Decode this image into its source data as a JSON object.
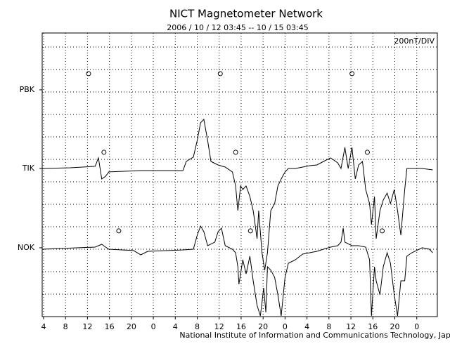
{
  "chart_data": {
    "type": "line",
    "title": "NICT Magnetometer Network",
    "subtitle": "2006 / 10 / 12   03:45 -- 10 / 15   03:45",
    "scale_label": "200nT/DIV",
    "color": "#000000",
    "grid": true,
    "xlim": [
      3.75,
      75.75
    ],
    "xticks": [
      4,
      8,
      12,
      16,
      20,
      {
        "value": 24,
        "label": "0"
      },
      {
        "value": 28,
        "label": "4"
      },
      {
        "value": 32,
        "label": "8"
      },
      {
        "value": 36,
        "label": "12"
      },
      {
        "value": 40,
        "label": "16"
      },
      {
        "value": 44,
        "label": "20"
      },
      {
        "value": 48,
        "label": "0"
      },
      {
        "value": 52,
        "label": "4"
      },
      {
        "value": 56,
        "label": "8"
      },
      {
        "value": 60,
        "label": "12"
      },
      {
        "value": 64,
        "label": "16"
      },
      {
        "value": 68,
        "label": "20"
      },
      {
        "value": 72,
        "label": "0"
      }
    ],
    "ylim": [
      0,
      2525
    ],
    "ygrid": [
      200,
      400,
      600,
      800,
      1000,
      1200,
      1400,
      1600,
      1800,
      2000,
      2200,
      2400
    ],
    "stations": [
      {
        "label": "PBK",
        "baseline": 2019,
        "marker_x": [
          12.2,
          36.2,
          60.2
        ],
        "marker_y": 2163
      },
      {
        "label": "TIK",
        "baseline": 1319,
        "marker_x": [
          15,
          39,
          63
        ],
        "marker_y": 1463,
        "x": [
          3.75,
          8.9,
          13.4,
          14.0,
          14.6,
          15.3,
          15.9,
          21.7,
          29.4,
          30.0,
          31.3,
          32.0,
          32.6,
          33.2,
          33.9,
          34.5,
          35.8,
          37.1,
          38.4,
          39.0,
          39.4,
          39.9,
          40.3,
          40.9,
          41.6,
          42.2,
          42.9,
          43.2,
          43.8,
          44.3,
          44.8,
          45.4,
          46.1,
          46.7,
          47.3,
          48.0,
          48.6,
          49.9,
          51.2,
          52.5,
          53.8,
          55.0,
          56.3,
          57.6,
          58.2,
          58.9,
          59.5,
          60.2,
          60.8,
          61.4,
          62.1,
          62.7,
          63.4,
          63.75,
          64.3,
          64.6,
          65.3,
          65.9,
          66.6,
          67.2,
          67.9,
          68.5,
          69.1,
          69.8,
          70.2,
          71.1,
          73.0,
          74.9
        ],
        "values": [
          1319,
          1325,
          1338,
          1413,
          1225,
          1250,
          1288,
          1300,
          1300,
          1381,
          1420,
          1569,
          1725,
          1756,
          1569,
          1381,
          1350,
          1331,
          1288,
          1163,
          944,
          1163,
          1131,
          1163,
          1069,
          944,
          694,
          944,
          569,
          413,
          569,
          944,
          1006,
          1163,
          1225,
          1288,
          1319,
          1319,
          1331,
          1344,
          1350,
          1381,
          1413,
          1369,
          1319,
          1506,
          1319,
          1506,
          1225,
          1350,
          1381,
          1131,
          1006,
          819,
          1069,
          694,
          944,
          1038,
          1100,
          1006,
          1131,
          944,
          725,
          1131,
          1319,
          1319,
          1319,
          1306
        ]
      },
      {
        "label": "NOK",
        "baseline": 613,
        "marker_x": [
          17.7,
          41.7,
          65.7
        ],
        "marker_y": 763,
        "x": [
          3.75,
          13.4,
          14.6,
          15.3,
          15.9,
          20.4,
          21.7,
          23.0,
          29.4,
          31.3,
          32.0,
          32.6,
          33.2,
          33.9,
          35.2,
          35.8,
          36.4,
          37.1,
          38.4,
          39.0,
          39.4,
          39.6,
          40.3,
          40.9,
          41.6,
          42.2,
          42.9,
          43.5,
          44.1,
          44.5,
          44.8,
          45.4,
          46.1,
          46.7,
          47.3,
          48.0,
          48.6,
          49.9,
          51.2,
          52.5,
          53.8,
          55.0,
          56.3,
          57.6,
          58.2,
          58.6,
          58.9,
          60.2,
          61.4,
          62.7,
          63.4,
          63.75,
          64.3,
          64.6,
          65.3,
          65.9,
          66.6,
          67.2,
          67.9,
          68.5,
          69.1,
          69.8,
          70.2,
          71.1,
          73.0,
          74.3,
          74.9
        ],
        "values": [
          600,
          619,
          644,
          619,
          600,
          588,
          550,
          581,
          594,
          600,
          725,
          806,
          756,
          631,
          663,
          756,
          788,
          631,
          600,
          569,
          444,
          288,
          506,
          381,
          538,
          319,
          100,
          6,
          256,
          38,
          444,
          413,
          350,
          194,
          6,
          350,
          475,
          506,
          556,
          569,
          581,
          600,
          619,
          631,
          663,
          788,
          663,
          631,
          631,
          619,
          506,
          6,
          444,
          319,
          194,
          444,
          569,
          475,
          194,
          6,
          319,
          319,
          538,
          569,
          613,
          600,
          569
        ]
      }
    ]
  },
  "footer": "National Institute of Information and Communications Technology, Japan"
}
